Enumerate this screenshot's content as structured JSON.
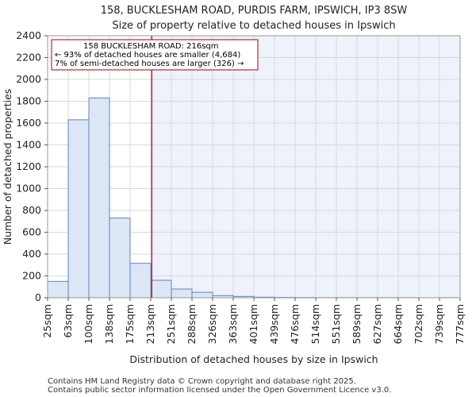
{
  "chart_data": {
    "type": "bar",
    "title_line1": "158, BUCKLESHAM ROAD, PURDIS FARM, IPSWICH, IP3 8SW",
    "title_line2": "Size of property relative to detached houses in Ipswich",
    "xlabel": "Distribution of detached houses by size in Ipswich",
    "ylabel": "Number of detached properties",
    "categories": [
      "25sqm",
      "63sqm",
      "100sqm",
      "138sqm",
      "175sqm",
      "213sqm",
      "251sqm",
      "288sqm",
      "326sqm",
      "363sqm",
      "401sqm",
      "439sqm",
      "476sqm",
      "514sqm",
      "551sqm",
      "589sqm",
      "627sqm",
      "664sqm",
      "702sqm",
      "739sqm",
      "777sqm"
    ],
    "values": [
      150,
      1630,
      1830,
      730,
      315,
      160,
      80,
      50,
      20,
      12,
      5,
      3,
      2,
      1,
      1,
      1,
      1,
      1,
      0,
      1,
      0
    ],
    "ylim": [
      0,
      2400
    ],
    "yticks": [
      0,
      200,
      400,
      600,
      800,
      1000,
      1200,
      1400,
      1600,
      1800,
      2000,
      2200,
      2400
    ],
    "bar_color": "#dce6f4",
    "bar_edge_color": "#5b84c4",
    "highlight_fill": "#eef2fb",
    "marker_value_index": 5.05,
    "marker_color": "#aa0000",
    "annotation": {
      "line1": "158 BUCKLESHAM ROAD: 216sqm",
      "line2": "← 93% of detached houses are smaller (4,684)",
      "line3": "7% of semi-detached houses are larger (326) →"
    },
    "grid": true
  },
  "footer": {
    "line1": "Contains HM Land Registry data © Crown copyright and database right 2025.",
    "line2": "Contains public sector information licensed under the Open Government Licence v3.0."
  }
}
